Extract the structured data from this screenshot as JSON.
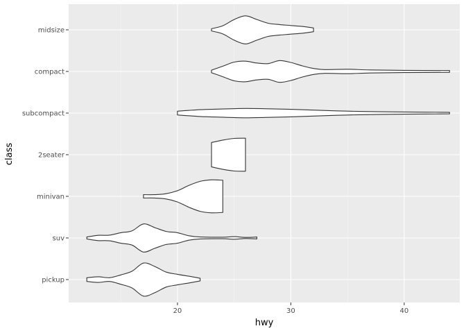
{
  "chart_data": {
    "type": "violin",
    "orientation": "horizontal",
    "xlabel": "hwy",
    "ylabel": "class",
    "xlim": [
      10.4,
      44.9
    ],
    "x_ticks": [
      20,
      30,
      40
    ],
    "x_tick_labels": [
      "20",
      "30",
      "40"
    ],
    "x_minor_ticks": [
      15,
      25,
      35
    ],
    "grid": true,
    "categories": [
      "midsize",
      "compact",
      "subcompact",
      "2seater",
      "minivan",
      "suv",
      "pickup"
    ],
    "violins": [
      {
        "category": "midsize",
        "profile": [
          [
            23,
            0.06
          ],
          [
            24,
            0.22
          ],
          [
            25,
            0.55
          ],
          [
            26,
            0.75
          ],
          [
            27,
            0.55
          ],
          [
            28,
            0.35
          ],
          [
            29,
            0.28
          ],
          [
            30,
            0.23
          ],
          [
            31,
            0.18
          ],
          [
            32,
            0.1
          ]
        ]
      },
      {
        "category": "compact",
        "profile": [
          [
            23,
            0.07
          ],
          [
            24,
            0.28
          ],
          [
            25,
            0.5
          ],
          [
            26,
            0.55
          ],
          [
            27,
            0.45
          ],
          [
            28,
            0.42
          ],
          [
            29,
            0.58
          ],
          [
            30,
            0.48
          ],
          [
            31,
            0.3
          ],
          [
            32,
            0.16
          ],
          [
            33,
            0.1
          ],
          [
            35,
            0.12
          ],
          [
            37,
            0.08
          ],
          [
            40,
            0.06
          ],
          [
            44,
            0.05
          ]
        ]
      },
      {
        "category": "subcompact",
        "profile": [
          [
            20,
            0.1
          ],
          [
            22,
            0.18
          ],
          [
            24,
            0.22
          ],
          [
            26,
            0.25
          ],
          [
            28,
            0.23
          ],
          [
            30,
            0.2
          ],
          [
            32,
            0.16
          ],
          [
            34,
            0.12
          ],
          [
            36,
            0.09
          ],
          [
            38,
            0.07
          ],
          [
            40,
            0.06
          ],
          [
            42,
            0.05
          ],
          [
            44,
            0.04
          ]
        ]
      },
      {
        "category": "2seater",
        "profile": [
          [
            23,
            0.65
          ],
          [
            24,
            0.78
          ],
          [
            25,
            0.87
          ],
          [
            26,
            0.88
          ]
        ]
      },
      {
        "category": "minivan",
        "profile": [
          [
            17,
            0.09
          ],
          [
            18,
            0.09
          ],
          [
            19,
            0.14
          ],
          [
            20,
            0.3
          ],
          [
            21,
            0.58
          ],
          [
            22,
            0.8
          ],
          [
            23,
            0.88
          ],
          [
            24,
            0.86
          ]
        ]
      },
      {
        "category": "suv",
        "profile": [
          [
            12,
            0.05
          ],
          [
            13,
            0.14
          ],
          [
            14,
            0.15
          ],
          [
            15,
            0.28
          ],
          [
            16,
            0.38
          ],
          [
            17,
            0.75
          ],
          [
            18,
            0.55
          ],
          [
            19,
            0.35
          ],
          [
            20,
            0.28
          ],
          [
            21,
            0.12
          ],
          [
            22,
            0.05
          ],
          [
            24,
            0.04
          ],
          [
            25,
            0.07
          ],
          [
            26,
            0.03
          ],
          [
            27,
            0.05
          ]
        ]
      },
      {
        "category": "pickup",
        "profile": [
          [
            12,
            0.1
          ],
          [
            13,
            0.15
          ],
          [
            14,
            0.1
          ],
          [
            15,
            0.25
          ],
          [
            16,
            0.45
          ],
          [
            17,
            0.88
          ],
          [
            18,
            0.7
          ],
          [
            19,
            0.4
          ],
          [
            20,
            0.28
          ],
          [
            21,
            0.18
          ],
          [
            22,
            0.07
          ]
        ]
      }
    ],
    "colors": {
      "panel_bg": "#EBEBEB",
      "grid_major": "#FFFFFF",
      "grid_minor": "#F5F5F5",
      "violin_fill": "#FFFFFF",
      "violin_stroke": "#333333"
    }
  }
}
